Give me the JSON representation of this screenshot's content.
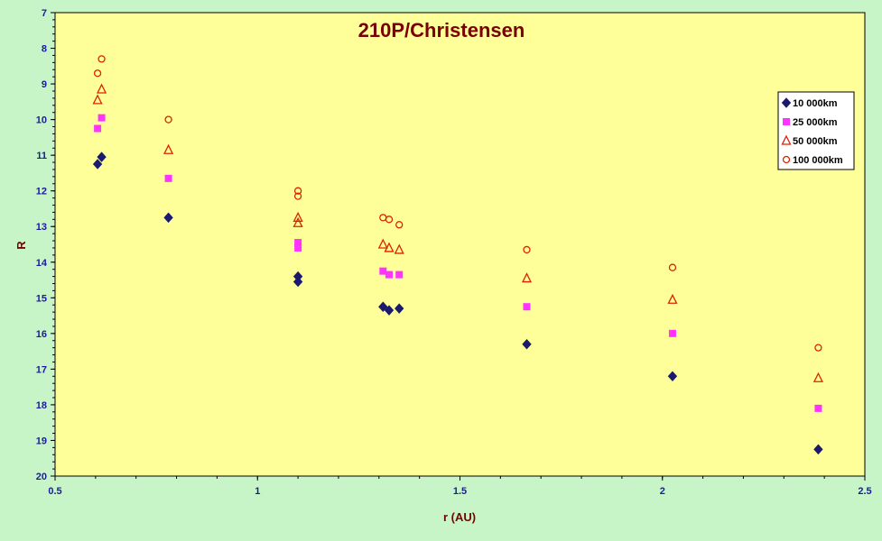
{
  "chart_data": {
    "type": "scatter",
    "title": "210P/Christensen",
    "xlabel": "r (AU)",
    "ylabel": "R",
    "xlim": [
      0.5,
      2.5
    ],
    "ylim": [
      7,
      20
    ],
    "y_inverted": true,
    "x_ticks": [
      "0.5",
      "1",
      "1.5",
      "2",
      "2.5"
    ],
    "y_ticks": [
      "7",
      "8",
      "9",
      "10",
      "11",
      "12",
      "13",
      "14",
      "15",
      "16",
      "17",
      "18",
      "19",
      "20"
    ],
    "grid": false,
    "legend_position": "top-right",
    "background": "#ffff99",
    "series": [
      {
        "name": "10 000km",
        "marker": "diamond",
        "color": "#1a1a6e",
        "points": [
          [
            0.605,
            11.25
          ],
          [
            0.615,
            11.05
          ],
          [
            0.78,
            12.75
          ],
          [
            1.1,
            14.4
          ],
          [
            1.1,
            14.55
          ],
          [
            1.31,
            15.25
          ],
          [
            1.325,
            15.35
          ],
          [
            1.35,
            15.3
          ],
          [
            1.665,
            16.3
          ],
          [
            2.025,
            17.2
          ],
          [
            2.385,
            19.25
          ]
        ]
      },
      {
        "name": "25 000km",
        "marker": "square",
        "color": "#ff33ff",
        "points": [
          [
            0.605,
            10.25
          ],
          [
            0.615,
            9.95
          ],
          [
            0.78,
            11.65
          ],
          [
            1.1,
            13.45
          ],
          [
            1.1,
            13.6
          ],
          [
            1.31,
            14.25
          ],
          [
            1.325,
            14.35
          ],
          [
            1.35,
            14.35
          ],
          [
            1.665,
            15.25
          ],
          [
            2.025,
            16.0
          ],
          [
            2.385,
            18.1
          ]
        ]
      },
      {
        "name": "50 000km",
        "marker": "triangle",
        "color": "#dd2200",
        "points": [
          [
            0.605,
            9.45
          ],
          [
            0.615,
            9.15
          ],
          [
            0.78,
            10.85
          ],
          [
            1.1,
            12.75
          ],
          [
            1.1,
            12.9
          ],
          [
            1.31,
            13.5
          ],
          [
            1.325,
            13.6
          ],
          [
            1.35,
            13.65
          ],
          [
            1.665,
            14.45
          ],
          [
            2.025,
            15.05
          ],
          [
            2.385,
            17.25
          ]
        ]
      },
      {
        "name": "100 000km",
        "marker": "circle",
        "color": "#dd2200",
        "points": [
          [
            0.605,
            8.7
          ],
          [
            0.615,
            8.3
          ],
          [
            0.78,
            10.0
          ],
          [
            1.1,
            12.0
          ],
          [
            1.1,
            12.15
          ],
          [
            1.31,
            12.75
          ],
          [
            1.325,
            12.8
          ],
          [
            1.35,
            12.95
          ],
          [
            1.665,
            13.65
          ],
          [
            2.025,
            14.15
          ],
          [
            2.385,
            16.4
          ]
        ]
      }
    ]
  }
}
